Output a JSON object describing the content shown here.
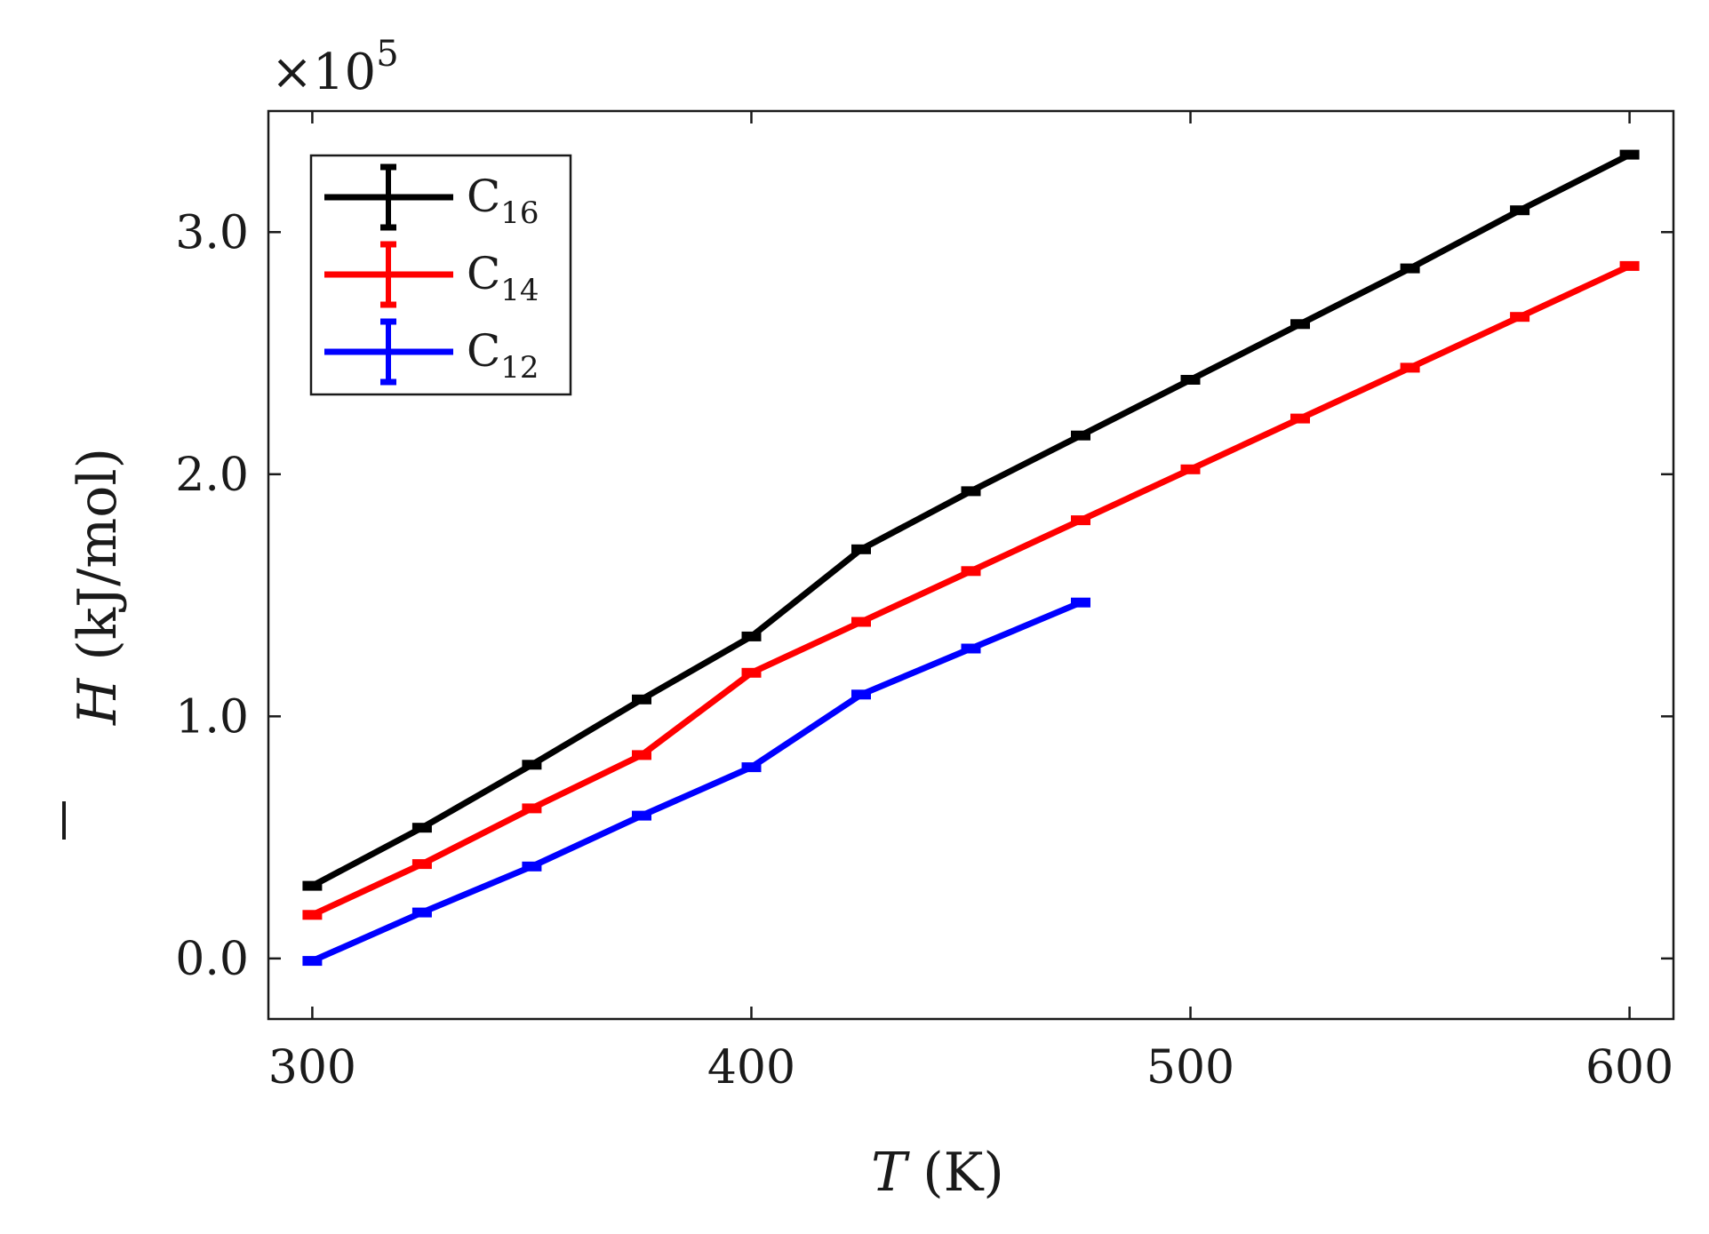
{
  "chart_data": {
    "type": "line",
    "title": "",
    "xlabel_var": "T",
    "xlabel_unit": "(K)",
    "ylabel_var": "H",
    "ylabel_unit": "(kJ/mol)",
    "y_exponent_prefix": "×10",
    "y_exponent_power": "5",
    "xlim": [
      290,
      610
    ],
    "ylim": [
      -0.25,
      3.5
    ],
    "xticks": [
      300,
      400,
      500,
      600
    ],
    "xtick_labels": [
      "300",
      "400",
      "500",
      "600"
    ],
    "yticks": [
      0,
      1,
      2,
      3
    ],
    "ytick_labels": [
      "0.0",
      "1.0",
      "2.0",
      "3.0"
    ],
    "legend_position": "top-left",
    "series": [
      {
        "name": "C16",
        "label_main": "C",
        "label_sub": "16",
        "color": "#000000",
        "x": [
          300,
          325,
          350,
          375,
          400,
          425,
          450,
          475,
          500,
          525,
          550,
          575,
          600
        ],
        "y": [
          0.3,
          0.54,
          0.8,
          1.07,
          1.33,
          1.69,
          1.93,
          2.16,
          2.39,
          2.62,
          2.85,
          3.09,
          3.32
        ]
      },
      {
        "name": "C14",
        "label_main": "C",
        "label_sub": "14",
        "color": "#ff0000",
        "x": [
          300,
          325,
          350,
          375,
          400,
          425,
          450,
          475,
          500,
          525,
          550,
          575,
          600
        ],
        "y": [
          0.18,
          0.39,
          0.62,
          0.84,
          1.18,
          1.39,
          1.6,
          1.81,
          2.02,
          2.23,
          2.44,
          2.65,
          2.86
        ]
      },
      {
        "name": "C12",
        "label_main": "C",
        "label_sub": "12",
        "color": "#0000ff",
        "x": [
          300,
          325,
          350,
          375,
          400,
          425,
          450,
          475
        ],
        "y": [
          -0.01,
          0.19,
          0.38,
          0.59,
          0.79,
          1.09,
          1.28,
          1.47
        ]
      }
    ]
  }
}
